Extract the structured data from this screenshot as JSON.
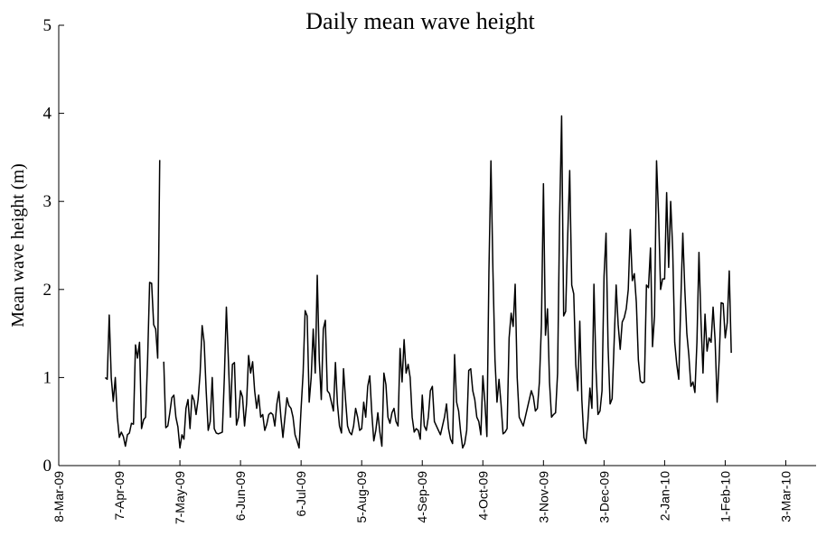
{
  "chart_data": {
    "type": "line",
    "title": "Daily mean wave height",
    "y_label": "Mean wave height (m)",
    "color": "#000000",
    "grid": false,
    "xlim": [
      "2009-03-08",
      "2010-03-18"
    ],
    "xticks": [
      {
        "value": "2009-03-08",
        "label": "8-Mar-09"
      },
      {
        "value": "2009-04-07",
        "label": "7-Apr-09"
      },
      {
        "value": "2009-05-07",
        "label": "7-May-09"
      },
      {
        "value": "2009-06-06",
        "label": "6-Jun-09"
      },
      {
        "value": "2009-07-06",
        "label": "6-Jul-09"
      },
      {
        "value": "2009-08-05",
        "label": "5-Aug-09"
      },
      {
        "value": "2009-09-04",
        "label": "4-Sep-09"
      },
      {
        "value": "2009-10-04",
        "label": "4-Oct-09"
      },
      {
        "value": "2009-11-03",
        "label": "3-Nov-09"
      },
      {
        "value": "2009-12-03",
        "label": "3-Dec-09"
      },
      {
        "value": "2010-01-02",
        "label": "2-Jan-10"
      },
      {
        "value": "2010-02-01",
        "label": "1-Feb-10"
      },
      {
        "value": "2010-03-03",
        "label": "3-Mar-10"
      }
    ],
    "ylim": [
      0,
      5
    ],
    "yticks": [
      0,
      1,
      2,
      3,
      4,
      5
    ],
    "x": [
      "2009-03-31",
      "2009-04-01",
      "2009-04-02",
      "2009-04-03",
      "2009-04-04",
      "2009-04-05",
      "2009-04-06",
      "2009-04-07",
      "2009-04-08",
      "2009-04-09",
      "2009-04-10",
      "2009-04-11",
      "2009-04-12",
      "2009-04-13",
      "2009-04-14",
      "2009-04-15",
      "2009-04-16",
      "2009-04-17",
      "2009-04-18",
      "2009-04-19",
      "2009-04-20",
      "2009-04-21",
      "2009-04-22",
      "2009-04-23",
      "2009-04-24",
      "2009-04-25",
      "2009-04-26",
      "2009-04-27",
      "2009-04-28",
      "2009-04-29",
      "2009-04-30",
      "2009-05-01",
      "2009-05-02",
      "2009-05-03",
      "2009-05-04",
      "2009-05-05",
      "2009-05-06",
      "2009-05-07",
      "2009-05-08",
      "2009-05-09",
      "2009-05-10",
      "2009-05-11",
      "2009-05-12",
      "2009-05-13",
      "2009-05-14",
      "2009-05-15",
      "2009-05-16",
      "2009-05-17",
      "2009-05-18",
      "2009-05-19",
      "2009-05-20",
      "2009-05-21",
      "2009-05-22",
      "2009-05-23",
      "2009-05-24",
      "2009-05-25",
      "2009-05-26",
      "2009-05-27",
      "2009-05-28",
      "2009-05-29",
      "2009-05-30",
      "2009-05-31",
      "2009-06-01",
      "2009-06-02",
      "2009-06-03",
      "2009-06-04",
      "2009-06-05",
      "2009-06-06",
      "2009-06-07",
      "2009-06-08",
      "2009-06-09",
      "2009-06-10",
      "2009-06-11",
      "2009-06-12",
      "2009-06-13",
      "2009-06-14",
      "2009-06-15",
      "2009-06-16",
      "2009-06-17",
      "2009-06-18",
      "2009-06-19",
      "2009-06-20",
      "2009-06-21",
      "2009-06-22",
      "2009-06-23",
      "2009-06-24",
      "2009-06-25",
      "2009-06-26",
      "2009-06-27",
      "2009-06-28",
      "2009-06-29",
      "2009-06-30",
      "2009-07-01",
      "2009-07-02",
      "2009-07-03",
      "2009-07-04",
      "2009-07-05",
      "2009-07-06",
      "2009-07-07",
      "2009-07-08",
      "2009-07-09",
      "2009-07-10",
      "2009-07-11",
      "2009-07-12",
      "2009-07-13",
      "2009-07-14",
      "2009-07-15",
      "2009-07-16",
      "2009-07-17",
      "2009-07-18",
      "2009-07-19",
      "2009-07-20",
      "2009-07-21",
      "2009-07-22",
      "2009-07-23",
      "2009-07-24",
      "2009-07-25",
      "2009-07-26",
      "2009-07-27",
      "2009-07-28",
      "2009-07-29",
      "2009-07-30",
      "2009-07-31",
      "2009-08-01",
      "2009-08-02",
      "2009-08-03",
      "2009-08-04",
      "2009-08-05",
      "2009-08-06",
      "2009-08-07",
      "2009-08-08",
      "2009-08-09",
      "2009-08-10",
      "2009-08-11",
      "2009-08-12",
      "2009-08-13",
      "2009-08-14",
      "2009-08-15",
      "2009-08-16",
      "2009-08-17",
      "2009-08-18",
      "2009-08-19",
      "2009-08-20",
      "2009-08-21",
      "2009-08-22",
      "2009-08-23",
      "2009-08-24",
      "2009-08-25",
      "2009-08-26",
      "2009-08-27",
      "2009-08-28",
      "2009-08-29",
      "2009-08-30",
      "2009-08-31",
      "2009-09-01",
      "2009-09-02",
      "2009-09-03",
      "2009-09-04",
      "2009-09-05",
      "2009-09-06",
      "2009-09-07",
      "2009-09-08",
      "2009-09-09",
      "2009-09-10",
      "2009-09-11",
      "2009-09-12",
      "2009-09-13",
      "2009-09-14",
      "2009-09-15",
      "2009-09-16",
      "2009-09-17",
      "2009-09-18",
      "2009-09-19",
      "2009-09-20",
      "2009-09-21",
      "2009-09-22",
      "2009-09-23",
      "2009-09-24",
      "2009-09-25",
      "2009-09-26",
      "2009-09-27",
      "2009-09-28",
      "2009-09-29",
      "2009-09-30",
      "2009-10-01",
      "2009-10-02",
      "2009-10-03",
      "2009-10-04",
      "2009-10-05",
      "2009-10-06",
      "2009-10-07",
      "2009-10-08",
      "2009-10-09",
      "2009-10-10",
      "2009-10-11",
      "2009-10-12",
      "2009-10-13",
      "2009-10-14",
      "2009-10-15",
      "2009-10-16",
      "2009-10-17",
      "2009-10-18",
      "2009-10-19",
      "2009-10-20",
      "2009-10-21",
      "2009-10-22",
      "2009-10-23",
      "2009-10-24",
      "2009-10-25",
      "2009-10-26",
      "2009-10-27",
      "2009-10-28",
      "2009-10-29",
      "2009-10-30",
      "2009-10-31",
      "2009-11-01",
      "2009-11-02",
      "2009-11-03",
      "2009-11-04",
      "2009-11-05",
      "2009-11-06",
      "2009-11-07",
      "2009-11-08",
      "2009-11-09",
      "2009-11-10",
      "2009-11-11",
      "2009-11-12",
      "2009-11-13",
      "2009-11-14",
      "2009-11-15",
      "2009-11-16",
      "2009-11-17",
      "2009-11-18",
      "2009-11-19",
      "2009-11-20",
      "2009-11-21",
      "2009-11-22",
      "2009-11-23",
      "2009-11-24",
      "2009-11-25",
      "2009-11-26",
      "2009-11-27",
      "2009-11-28",
      "2009-11-29",
      "2009-11-30",
      "2009-12-01",
      "2009-12-02",
      "2009-12-03",
      "2009-12-04",
      "2009-12-05",
      "2009-12-06",
      "2009-12-07",
      "2009-12-08",
      "2009-12-09",
      "2009-12-10",
      "2009-12-11",
      "2009-12-12",
      "2009-12-13",
      "2009-12-14",
      "2009-12-15",
      "2009-12-16",
      "2009-12-17",
      "2009-12-18",
      "2009-12-19",
      "2009-12-20",
      "2009-12-21",
      "2009-12-22",
      "2009-12-23",
      "2009-12-24",
      "2009-12-25",
      "2009-12-26",
      "2009-12-27",
      "2009-12-28",
      "2009-12-29",
      "2009-12-30",
      "2009-12-31",
      "2010-01-01",
      "2010-01-02",
      "2010-01-03",
      "2010-01-04",
      "2010-01-05",
      "2010-01-06",
      "2010-01-07",
      "2010-01-08",
      "2010-01-09",
      "2010-01-10",
      "2010-01-11",
      "2010-01-12",
      "2010-01-13",
      "2010-01-14",
      "2010-01-15",
      "2010-01-16",
      "2010-01-17",
      "2010-01-18",
      "2010-01-19",
      "2010-01-20",
      "2010-01-21",
      "2010-01-22",
      "2010-01-23",
      "2010-01-24",
      "2010-01-25",
      "2010-01-26",
      "2010-01-27",
      "2010-01-28",
      "2010-01-29",
      "2010-01-30",
      "2010-01-31",
      "2010-02-01",
      "2010-02-02",
      "2010-02-03",
      "2010-02-04"
    ],
    "values": [
      1.0,
      0.98,
      1.71,
      1.0,
      0.73,
      1.0,
      0.55,
      0.32,
      0.38,
      0.33,
      0.22,
      0.35,
      0.37,
      0.48,
      0.47,
      1.37,
      1.22,
      1.4,
      0.42,
      0.52,
      0.55,
      1.2,
      2.08,
      2.07,
      1.6,
      1.55,
      1.22,
      3.47,
      null,
      1.18,
      0.43,
      0.45,
      0.6,
      0.77,
      0.8,
      0.55,
      0.44,
      0.2,
      0.35,
      0.3,
      0.65,
      0.75,
      0.42,
      0.8,
      0.74,
      0.58,
      0.75,
      1.05,
      1.59,
      1.4,
      0.85,
      0.4,
      0.5,
      1.0,
      0.42,
      0.37,
      0.36,
      0.37,
      0.38,
      1.0,
      1.8,
      1.2,
      0.55,
      1.15,
      1.17,
      0.46,
      0.55,
      0.85,
      0.78,
      0.45,
      0.7,
      1.25,
      1.05,
      1.18,
      0.85,
      0.65,
      0.8,
      0.55,
      0.58,
      0.4,
      0.47,
      0.58,
      0.6,
      0.58,
      0.45,
      0.7,
      0.84,
      0.55,
      0.32,
      0.55,
      0.77,
      0.68,
      0.65,
      0.55,
      0.35,
      0.28,
      0.2,
      0.65,
      1.05,
      1.76,
      1.7,
      0.72,
      1.0,
      1.55,
      1.05,
      2.16,
      1.2,
      0.75,
      1.55,
      1.65,
      0.85,
      0.82,
      0.72,
      0.62,
      1.17,
      0.7,
      0.45,
      0.37,
      1.1,
      0.75,
      0.45,
      0.38,
      0.35,
      0.45,
      0.65,
      0.55,
      0.4,
      0.42,
      0.72,
      0.55,
      0.9,
      1.02,
      0.6,
      0.28,
      0.4,
      0.6,
      0.38,
      0.22,
      1.05,
      0.92,
      0.55,
      0.48,
      0.6,
      0.65,
      0.5,
      0.45,
      1.33,
      0.95,
      1.43,
      1.05,
      1.15,
      1.0,
      0.55,
      0.38,
      0.42,
      0.4,
      0.3,
      0.8,
      0.45,
      0.4,
      0.55,
      0.85,
      0.9,
      0.5,
      0.45,
      0.4,
      0.35,
      0.45,
      0.55,
      0.7,
      0.42,
      0.3,
      0.25,
      1.26,
      0.72,
      0.62,
      0.38,
      0.2,
      0.25,
      0.4,
      1.08,
      1.1,
      0.85,
      0.75,
      0.55,
      0.5,
      0.35,
      1.02,
      0.72,
      0.33,
      2.2,
      3.46,
      2.2,
      1.2,
      0.72,
      0.98,
      0.7,
      0.36,
      0.38,
      0.42,
      1.45,
      1.73,
      1.58,
      2.06,
      1.0,
      0.55,
      0.5,
      0.45,
      0.55,
      0.65,
      0.75,
      0.85,
      0.78,
      0.62,
      0.65,
      0.95,
      1.6,
      3.2,
      1.48,
      1.78,
      0.95,
      0.55,
      0.58,
      0.6,
      1.05,
      2.8,
      3.97,
      1.7,
      1.75,
      2.6,
      3.35,
      2.05,
      1.95,
      1.15,
      0.85,
      1.64,
      0.75,
      0.32,
      0.25,
      0.5,
      0.88,
      0.65,
      2.06,
      1.1,
      0.58,
      0.62,
      0.85,
      2.15,
      2.64,
      1.35,
      0.7,
      0.76,
      1.4,
      2.05,
      1.6,
      1.32,
      1.63,
      1.68,
      1.78,
      2.0,
      2.68,
      2.1,
      2.18,
      1.85,
      1.2,
      0.96,
      0.94,
      0.95,
      2.05,
      2.02,
      2.47,
      1.35,
      1.7,
      3.46,
      2.85,
      2.0,
      2.12,
      2.12,
      3.1,
      2.25,
      3.0,
      2.45,
      1.4,
      1.15,
      0.98,
      1.85,
      2.64,
      2.0,
      1.5,
      1.25,
      0.9,
      0.95,
      0.83,
      1.4,
      2.42,
      1.65,
      1.05,
      1.72,
      1.3,
      1.45,
      1.4,
      1.8,
      1.42,
      0.72,
      1.2,
      1.85,
      1.84,
      1.45,
      1.62,
      2.21,
      1.28
    ]
  }
}
